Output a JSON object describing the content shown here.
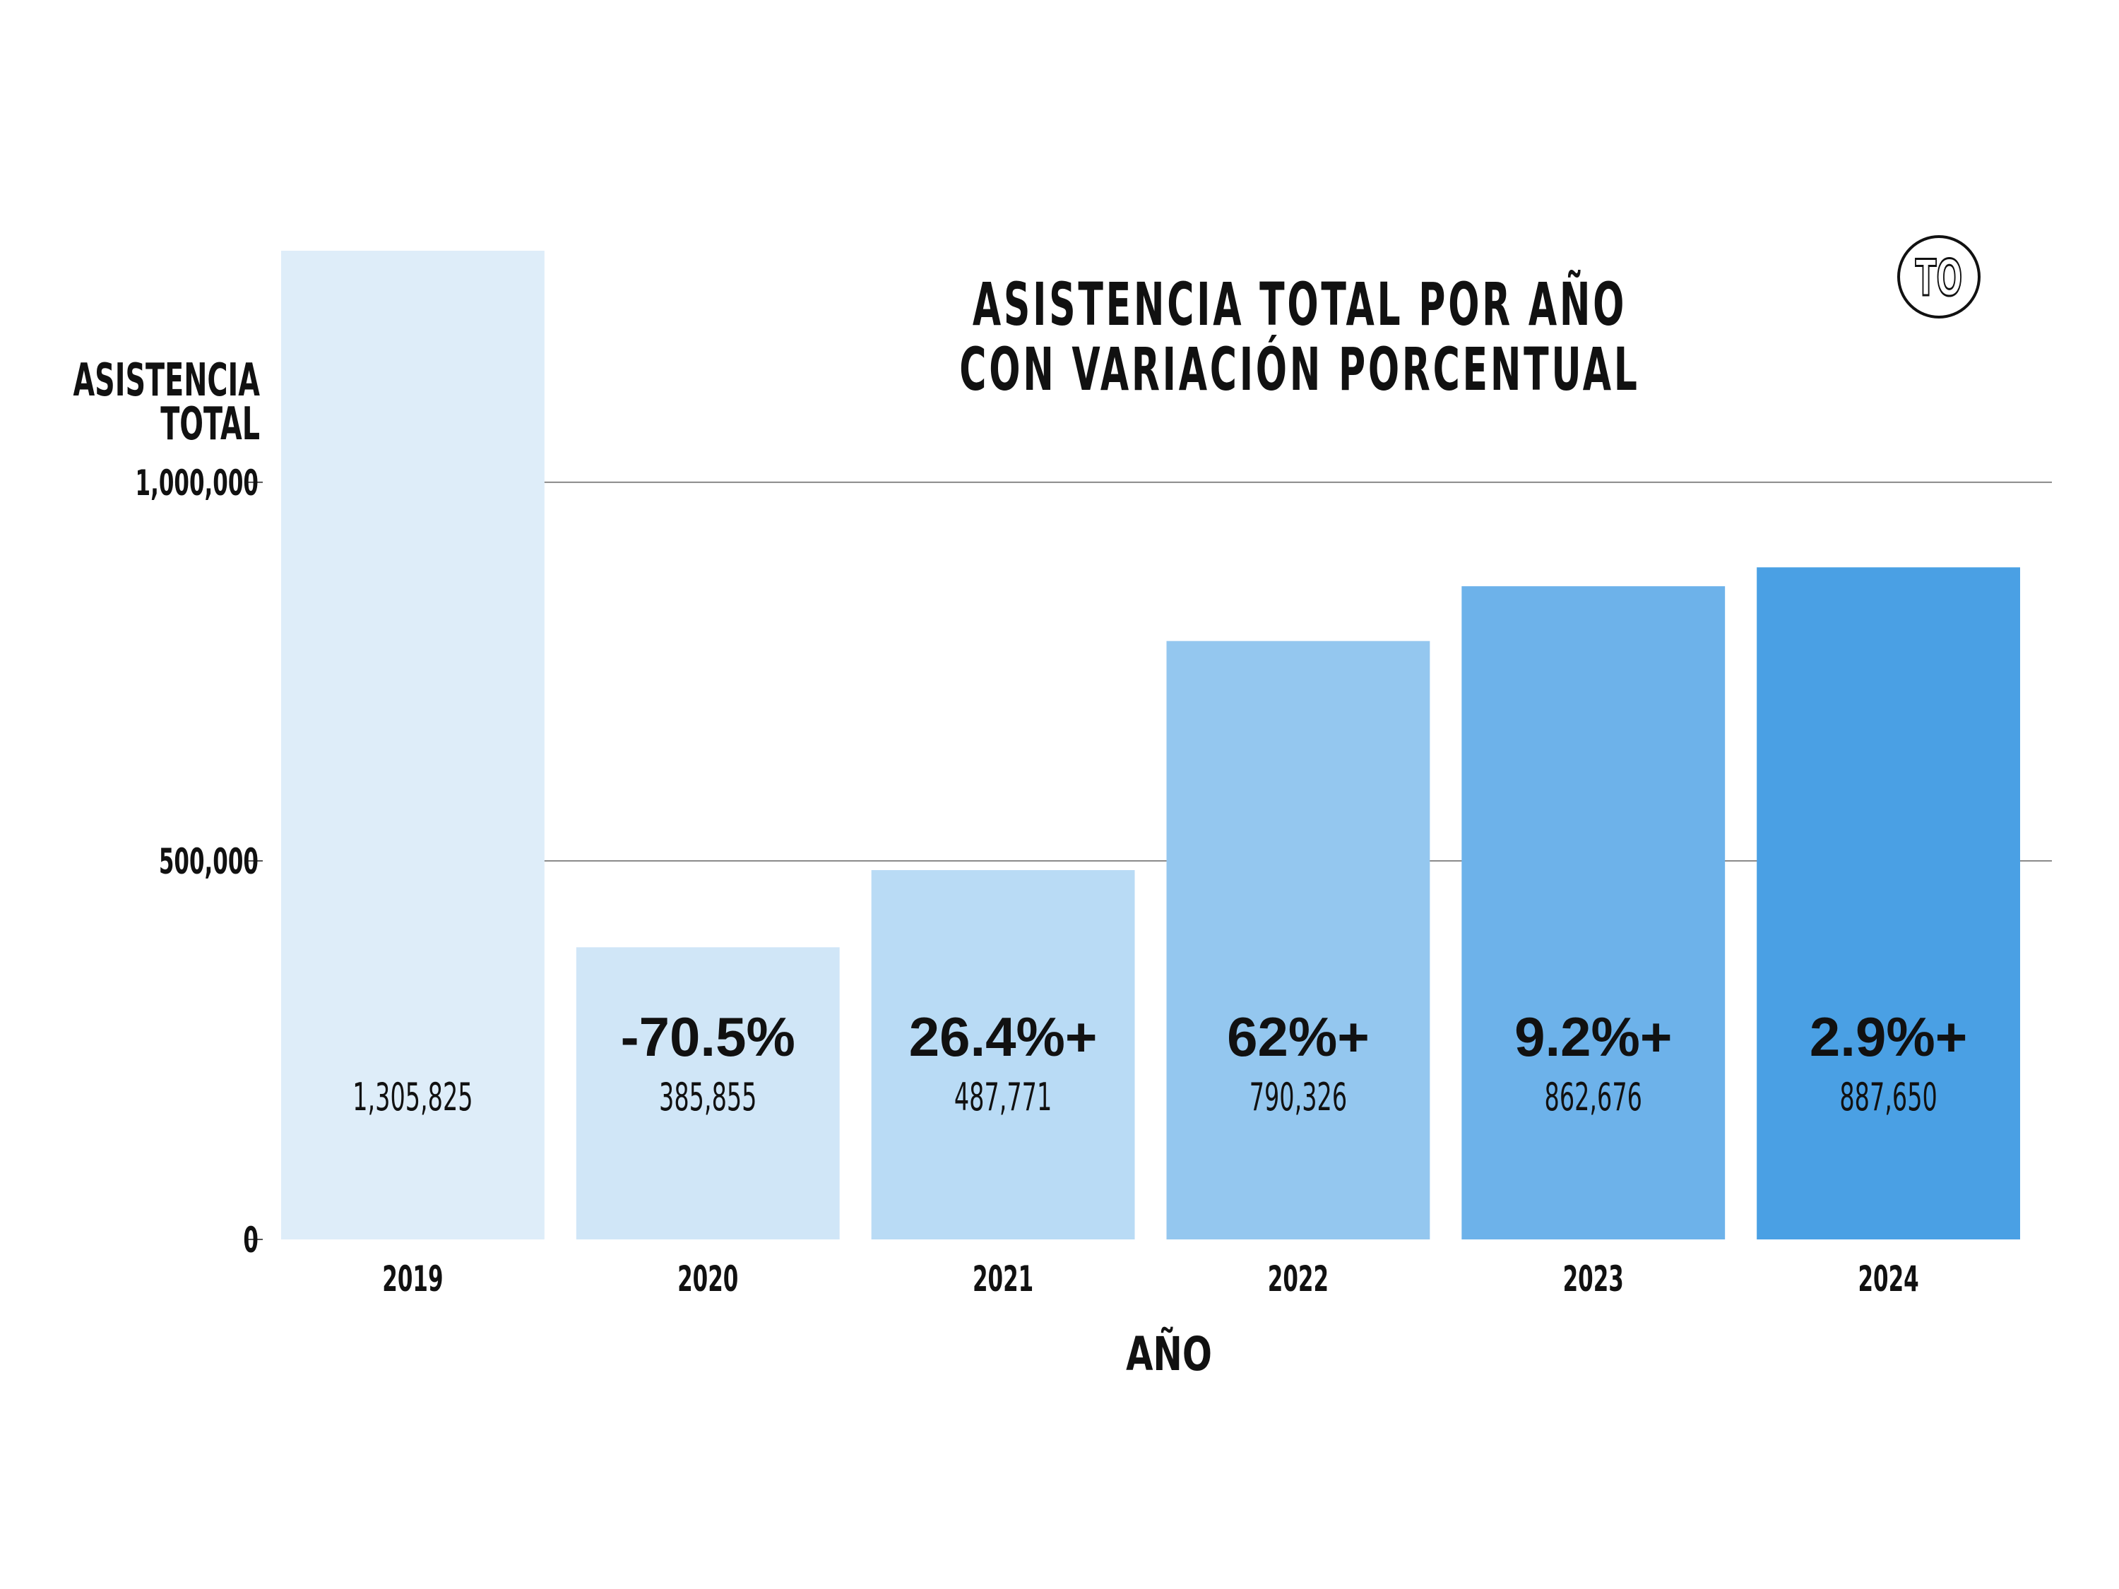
{
  "chart_data": {
    "type": "bar",
    "title_lines": [
      "ASISTENCIA TOTAL POR AÑO",
      "CON VARIACIÓN PORCENTUAL"
    ],
    "xlabel": "AÑO",
    "ylabel_lines": [
      "ASISTENCIA",
      "TOTAL"
    ],
    "categories": [
      "2019",
      "2020",
      "2021",
      "2022",
      "2023",
      "2024"
    ],
    "values": [
      1305825,
      385855,
      487771,
      790326,
      862676,
      887650
    ],
    "value_labels": [
      "1,305,825",
      "385,855",
      "487,771",
      "790,326",
      "862,676",
      "887,650"
    ],
    "change_labels": [
      "",
      "-70.5%",
      "26.4%+",
      "62%+",
      "9.2%+",
      "2.9%+"
    ],
    "bar_colors": [
      "#deedf9",
      "#d0e6f7",
      "#b9dbf5",
      "#94c7ef",
      "#6db2ea",
      "#4aa0e4"
    ],
    "ylim": [
      0,
      1305825
    ],
    "yticks": [
      0,
      500000,
      1000000
    ],
    "ytick_labels": [
      "0",
      "500,000",
      "1,000,000"
    ],
    "grid": true,
    "logo_text": "TO"
  }
}
